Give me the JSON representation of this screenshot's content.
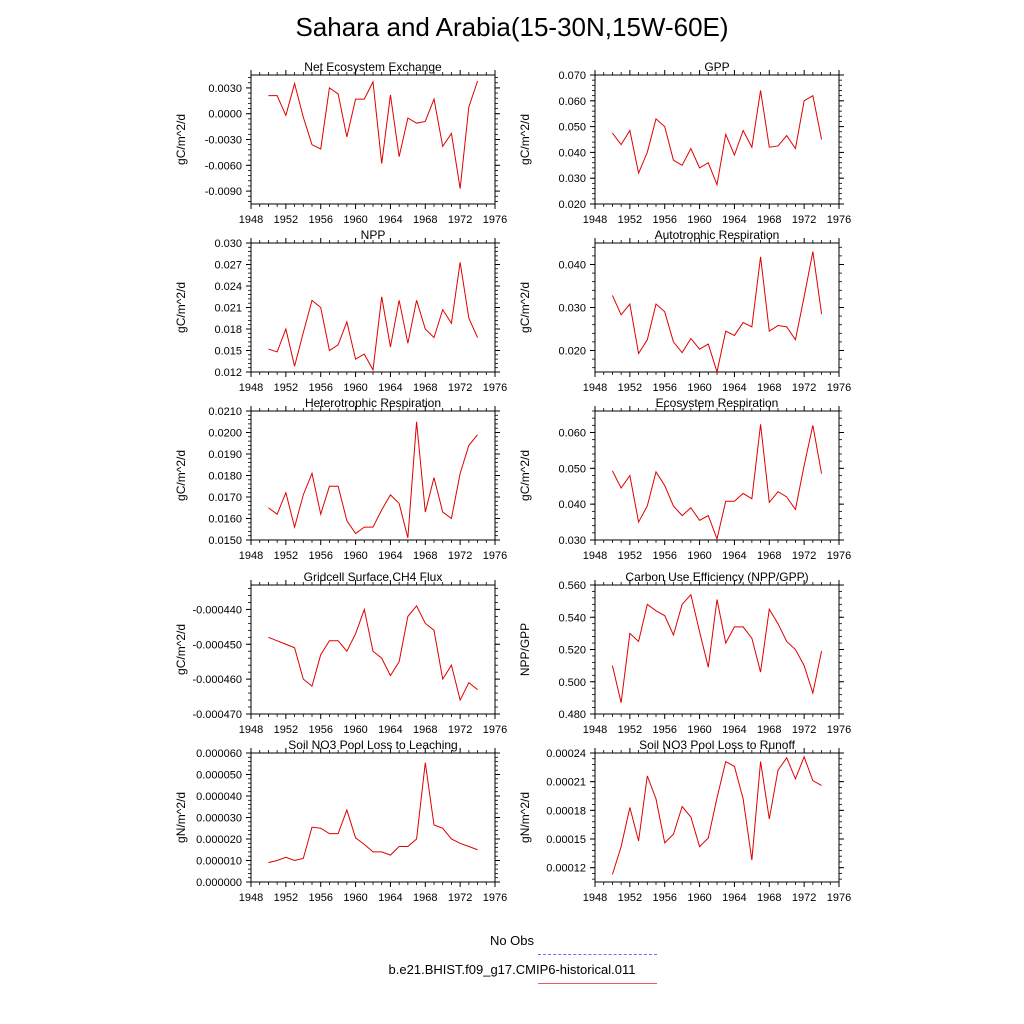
{
  "figure": {
    "title": "Sahara and Arabia(15-30N,15W-60E)"
  },
  "legend": {
    "obs_label": "No Obs",
    "model_label": "b.e21.BHIST.f09_g17.CMIP6-historical.011",
    "obs_color": "#5a5aff",
    "model_color": "#e00000"
  },
  "chart_data": [
    {
      "type": "line",
      "title": "Net Ecosystem Exchange",
      "ylabel": "gC/m^2/d",
      "xlim": [
        1948,
        1976
      ],
      "ylim": [
        -0.0105,
        0.0045
      ],
      "xticks": [
        "1948",
        "1952",
        "1956",
        "1960",
        "1964",
        "1968",
        "1972",
        "1976"
      ],
      "yticks": [
        "-0.0090",
        "-0.0060",
        "-0.0030",
        "0.0000",
        "0.0030"
      ],
      "x": [
        1950,
        1951,
        1952,
        1953,
        1954,
        1955,
        1956,
        1957,
        1958,
        1959,
        1960,
        1961,
        1962,
        1963,
        1964,
        1965,
        1966,
        1967,
        1968,
        1969,
        1970,
        1971,
        1972,
        1973,
        1974
      ],
      "series": [
        {
          "color": "#e00000",
          "values": [
            0.0021,
            0.0021,
            -0.0002,
            0.0035,
            -0.0004,
            -0.0036,
            -0.0041,
            0.003,
            0.0023,
            -0.0027,
            0.0017,
            0.0017,
            0.0037,
            -0.0058,
            0.0022,
            -0.005,
            -0.0005,
            -0.0011,
            -0.0009,
            0.0017,
            -0.0038,
            -0.0023,
            -0.0087,
            0.0008,
            0.0038
          ]
        }
      ]
    },
    {
      "type": "line",
      "title": "GPP",
      "ylabel": "gC/m^2/d",
      "xlim": [
        1948,
        1976
      ],
      "ylim": [
        0.02,
        0.07
      ],
      "xticks": [
        "1948",
        "1952",
        "1956",
        "1960",
        "1964",
        "1968",
        "1972",
        "1976"
      ],
      "yticks": [
        "0.020",
        "0.030",
        "0.040",
        "0.050",
        "0.060",
        "0.070"
      ],
      "x": [
        1950,
        1951,
        1952,
        1953,
        1954,
        1955,
        1956,
        1957,
        1958,
        1959,
        1960,
        1961,
        1962,
        1963,
        1964,
        1965,
        1966,
        1967,
        1968,
        1969,
        1970,
        1971,
        1972,
        1973,
        1974
      ],
      "series": [
        {
          "color": "#e00000",
          "values": [
            0.0475,
            0.043,
            0.0485,
            0.032,
            0.04,
            0.053,
            0.05,
            0.037,
            0.035,
            0.0415,
            0.034,
            0.036,
            0.0275,
            0.047,
            0.039,
            0.0485,
            0.042,
            0.064,
            0.042,
            0.0425,
            0.0465,
            0.0415,
            0.06,
            0.062,
            0.045
          ]
        }
      ]
    },
    {
      "type": "line",
      "title": "NPP",
      "ylabel": "gC/m^2/d",
      "xlim": [
        1948,
        1976
      ],
      "ylim": [
        0.012,
        0.03
      ],
      "xticks": [
        "1948",
        "1952",
        "1956",
        "1960",
        "1964",
        "1968",
        "1972",
        "1976"
      ],
      "yticks": [
        "0.012",
        "0.015",
        "0.018",
        "0.021",
        "0.024",
        "0.027",
        "0.030"
      ],
      "x": [
        1950,
        1951,
        1952,
        1953,
        1954,
        1955,
        1956,
        1957,
        1958,
        1959,
        1960,
        1961,
        1962,
        1963,
        1964,
        1965,
        1966,
        1967,
        1968,
        1969,
        1970,
        1971,
        1972,
        1973,
        1974
      ],
      "series": [
        {
          "color": "#e00000",
          "values": [
            0.0152,
            0.0148,
            0.018,
            0.0128,
            0.0175,
            0.022,
            0.021,
            0.015,
            0.0158,
            0.019,
            0.0138,
            0.0145,
            0.0123,
            0.0225,
            0.0155,
            0.022,
            0.016,
            0.022,
            0.018,
            0.0168,
            0.0207,
            0.0188,
            0.0273,
            0.0195,
            0.0168
          ]
        }
      ]
    },
    {
      "type": "line",
      "title": "Autotrophic Respiration",
      "ylabel": "gC/m^2/d",
      "xlim": [
        1948,
        1976
      ],
      "ylim": [
        0.015,
        0.045
      ],
      "xticks": [
        "1948",
        "1952",
        "1956",
        "1960",
        "1964",
        "1968",
        "1972",
        "1976"
      ],
      "yticks": [
        "0.020",
        "0.030",
        "0.040"
      ],
      "x": [
        1950,
        1951,
        1952,
        1953,
        1954,
        1955,
        1956,
        1957,
        1958,
        1959,
        1960,
        1961,
        1962,
        1963,
        1964,
        1965,
        1966,
        1967,
        1968,
        1969,
        1970,
        1971,
        1972,
        1973,
        1974
      ],
      "series": [
        {
          "color": "#e00000",
          "values": [
            0.0328,
            0.0283,
            0.0308,
            0.0193,
            0.0225,
            0.0308,
            0.029,
            0.022,
            0.0195,
            0.0228,
            0.0203,
            0.0215,
            0.015,
            0.0245,
            0.0235,
            0.0265,
            0.0255,
            0.0418,
            0.0245,
            0.0258,
            0.0255,
            0.0225,
            0.0325,
            0.043,
            0.0285
          ]
        }
      ]
    },
    {
      "type": "line",
      "title": "Heterotrophic Respiration",
      "ylabel": "gC/m^2/d",
      "xlim": [
        1948,
        1976
      ],
      "ylim": [
        0.015,
        0.021
      ],
      "xticks": [
        "1948",
        "1952",
        "1956",
        "1960",
        "1964",
        "1968",
        "1972",
        "1976"
      ],
      "yticks": [
        "0.0150",
        "0.0160",
        "0.0170",
        "0.0180",
        "0.0190",
        "0.0200",
        "0.0210"
      ],
      "x": [
        1950,
        1951,
        1952,
        1953,
        1954,
        1955,
        1956,
        1957,
        1958,
        1959,
        1960,
        1961,
        1962,
        1963,
        1964,
        1965,
        1966,
        1967,
        1968,
        1969,
        1970,
        1971,
        1972,
        1973,
        1974
      ],
      "series": [
        {
          "color": "#e00000",
          "values": [
            0.0165,
            0.0162,
            0.0172,
            0.0156,
            0.0171,
            0.0181,
            0.0162,
            0.0175,
            0.0175,
            0.0159,
            0.0153,
            0.0156,
            0.0156,
            0.0164,
            0.0171,
            0.0167,
            0.0151,
            0.0205,
            0.0163,
            0.0179,
            0.0163,
            0.016,
            0.0181,
            0.0194,
            0.0199
          ]
        }
      ]
    },
    {
      "type": "line",
      "title": "Ecosystem Respiration",
      "ylabel": "gC/m^2/d",
      "xlim": [
        1948,
        1976
      ],
      "ylim": [
        0.03,
        0.066
      ],
      "xticks": [
        "1948",
        "1952",
        "1956",
        "1960",
        "1964",
        "1968",
        "1972",
        "1976"
      ],
      "yticks": [
        "0.030",
        "0.040",
        "0.050",
        "0.060"
      ],
      "x": [
        1950,
        1951,
        1952,
        1953,
        1954,
        1955,
        1956,
        1957,
        1958,
        1959,
        1960,
        1961,
        1962,
        1963,
        1964,
        1965,
        1966,
        1967,
        1968,
        1969,
        1970,
        1971,
        1972,
        1973,
        1974
      ],
      "series": [
        {
          "color": "#e00000",
          "values": [
            0.0493,
            0.0445,
            0.048,
            0.035,
            0.0395,
            0.049,
            0.0452,
            0.0395,
            0.0368,
            0.039,
            0.0355,
            0.0368,
            0.0303,
            0.0408,
            0.0408,
            0.043,
            0.0415,
            0.0623,
            0.0405,
            0.0435,
            0.042,
            0.0385,
            0.0508,
            0.062,
            0.0485
          ]
        }
      ]
    },
    {
      "type": "line",
      "title": "Gridcell Surface CH4 Flux",
      "ylabel": "gC/m^2/d",
      "xlim": [
        1948,
        1976
      ],
      "ylim": [
        -0.00047,
        -0.000433
      ],
      "xticks": [
        "1948",
        "1952",
        "1956",
        "1960",
        "1964",
        "1968",
        "1972",
        "1976"
      ],
      "yticks": [
        "-0.000470",
        "-0.000460",
        "-0.000450",
        "-0.000440"
      ],
      "x": [
        1950,
        1951,
        1952,
        1953,
        1954,
        1955,
        1956,
        1957,
        1958,
        1959,
        1960,
        1961,
        1962,
        1963,
        1964,
        1965,
        1966,
        1967,
        1968,
        1969,
        1970,
        1971,
        1972,
        1973,
        1974
      ],
      "series": [
        {
          "color": "#e00000",
          "values": [
            -0.000448,
            -0.000449,
            -0.00045,
            -0.000451,
            -0.00046,
            -0.000462,
            -0.000453,
            -0.000449,
            -0.000449,
            -0.000452,
            -0.000447,
            -0.00044,
            -0.000452,
            -0.000454,
            -0.000459,
            -0.000455,
            -0.000442,
            -0.000439,
            -0.000444,
            -0.000446,
            -0.00046,
            -0.000456,
            -0.000466,
            -0.000461,
            -0.000463
          ]
        }
      ]
    },
    {
      "type": "line",
      "title": "Carbon Use Efficiency (NPP/GPP)",
      "ylabel": "NPP/GPP",
      "xlim": [
        1948,
        1976
      ],
      "ylim": [
        0.48,
        0.56
      ],
      "xticks": [
        "1948",
        "1952",
        "1956",
        "1960",
        "1964",
        "1968",
        "1972",
        "1976"
      ],
      "yticks": [
        "0.480",
        "0.500",
        "0.520",
        "0.540",
        "0.560"
      ],
      "x": [
        1950,
        1951,
        1952,
        1953,
        1954,
        1955,
        1956,
        1957,
        1958,
        1959,
        1960,
        1961,
        1962,
        1963,
        1964,
        1965,
        1966,
        1967,
        1968,
        1969,
        1970,
        1971,
        1972,
        1973,
        1974
      ],
      "series": [
        {
          "color": "#e00000",
          "values": [
            0.51,
            0.487,
            0.53,
            0.525,
            0.548,
            0.544,
            0.541,
            0.529,
            0.548,
            0.554,
            0.531,
            0.509,
            0.551,
            0.524,
            0.534,
            0.534,
            0.527,
            0.506,
            0.545,
            0.536,
            0.525,
            0.52,
            0.51,
            0.493,
            0.519
          ]
        }
      ]
    },
    {
      "type": "line",
      "title": "Soil NO3 Pool Loss to Leaching",
      "ylabel": "gN/m^2/d",
      "xlim": [
        1948,
        1976
      ],
      "ylim": [
        0,
        6e-05
      ],
      "xticks": [
        "1948",
        "1952",
        "1956",
        "1960",
        "1964",
        "1968",
        "1972",
        "1976"
      ],
      "yticks": [
        "0.000000",
        "0.000010",
        "0.000020",
        "0.000030",
        "0.000040",
        "0.000050",
        "0.000060"
      ],
      "x": [
        1950,
        1951,
        1952,
        1953,
        1954,
        1955,
        1956,
        1957,
        1958,
        1959,
        1960,
        1961,
        1962,
        1963,
        1964,
        1965,
        1966,
        1967,
        1968,
        1969,
        1970,
        1971,
        1972,
        1973,
        1974
      ],
      "series": [
        {
          "color": "#e00000",
          "values": [
            9e-06,
            1e-05,
            1.15e-05,
            1e-05,
            1.1e-05,
            2.55e-05,
            2.5e-05,
            2.25e-05,
            2.25e-05,
            3.35e-05,
            2.05e-05,
            1.75e-05,
            1.4e-05,
            1.4e-05,
            1.25e-05,
            1.65e-05,
            1.65e-05,
            2e-05,
            5.55e-05,
            2.65e-05,
            2.5e-05,
            2e-05,
            1.8e-05,
            1.65e-05,
            1.5e-05
          ]
        }
      ]
    },
    {
      "type": "line",
      "title": "Soil NO3 Pool Loss to Runoff",
      "ylabel": "gN/m^2/d",
      "xlim": [
        1948,
        1976
      ],
      "ylim": [
        0.000105,
        0.00024
      ],
      "xticks": [
        "1948",
        "1952",
        "1956",
        "1960",
        "1964",
        "1968",
        "1972",
        "1976"
      ],
      "yticks": [
        "0.00012",
        "0.00015",
        "0.00018",
        "0.00021",
        "0.00024"
      ],
      "x": [
        1950,
        1951,
        1952,
        1953,
        1954,
        1955,
        1956,
        1957,
        1958,
        1959,
        1960,
        1961,
        1962,
        1963,
        1964,
        1965,
        1966,
        1967,
        1968,
        1969,
        1970,
        1971,
        1972,
        1973,
        1974
      ],
      "series": [
        {
          "color": "#e00000",
          "values": [
            0.000113,
            0.000142,
            0.000183,
            0.000148,
            0.000216,
            0.000192,
            0.000146,
            0.000155,
            0.000184,
            0.000173,
            0.000142,
            0.000151,
            0.000193,
            0.000231,
            0.000226,
            0.000192,
            0.000128,
            0.000231,
            0.000171,
            0.000222,
            0.000235,
            0.000213,
            0.000236,
            0.000211,
            0.000206
          ]
        }
      ]
    }
  ]
}
